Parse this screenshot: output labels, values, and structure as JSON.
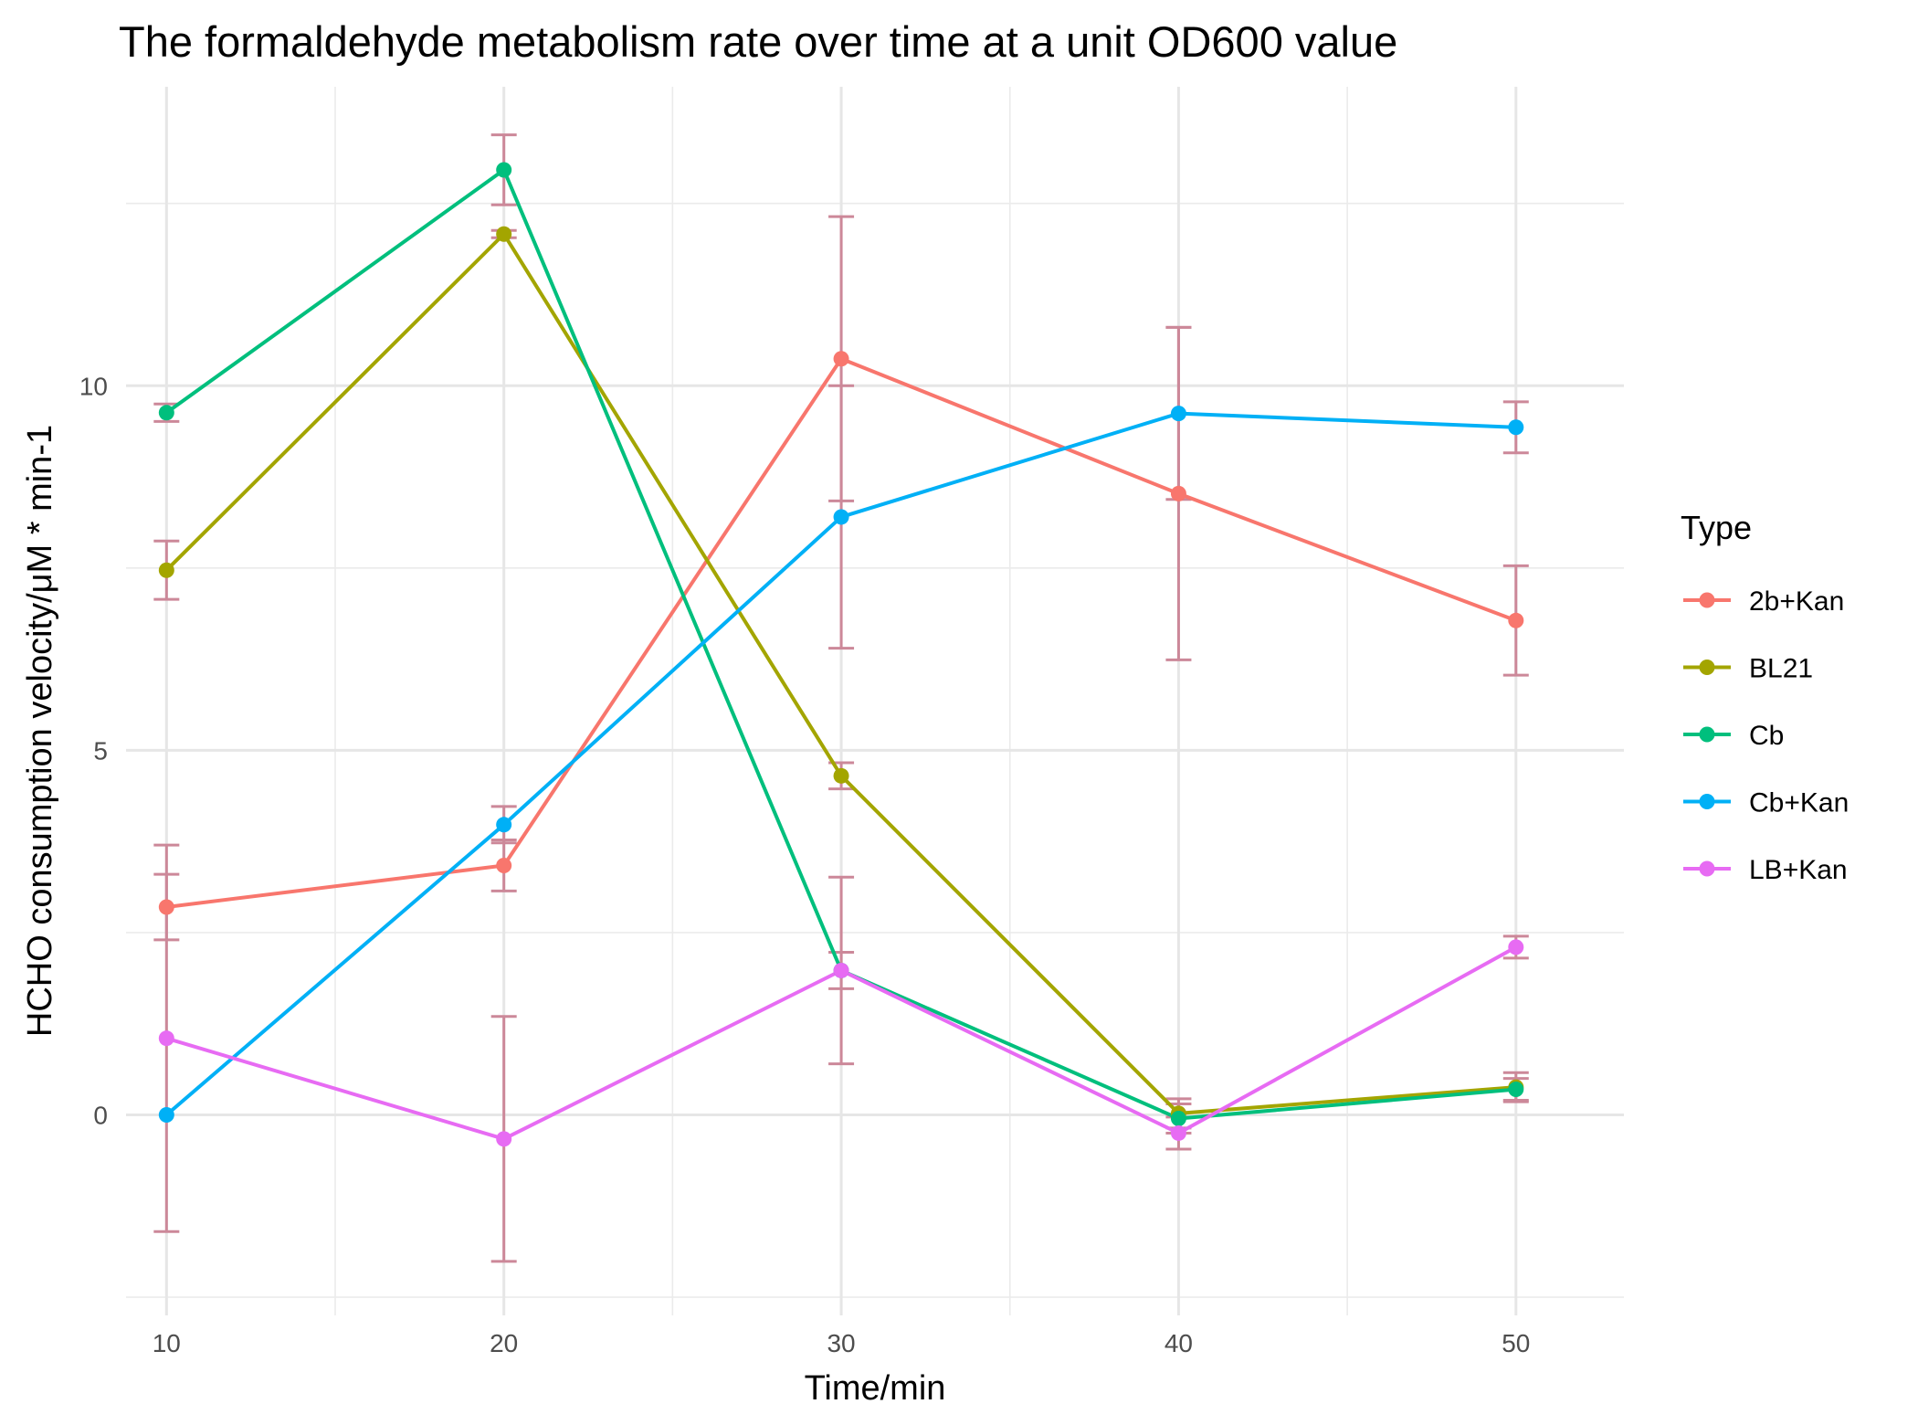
{
  "chart_data": {
    "type": "line",
    "title": "The formaldehyde metabolism rate over time at a unit OD600 value",
    "xlabel": "Time/min",
    "ylabel": "HCHO consumption velocity/μM * min-1",
    "x": [
      10,
      20,
      30,
      40,
      50
    ],
    "x_ticks": [
      "10",
      "20",
      "30",
      "40",
      "50"
    ],
    "y_ticks": [
      "0",
      "5",
      "10"
    ],
    "xlim": [
      8.8,
      53.2
    ],
    "ylim": [
      -2.75,
      14.1
    ],
    "grid": true,
    "legend": {
      "title": "Type",
      "placement": "right"
    },
    "error_bar_color": "#cc8899",
    "series": [
      {
        "name": "2b+Kan",
        "color": "#F8766D",
        "values": [
          2.85,
          3.42,
          10.37,
          8.52,
          6.78
        ],
        "err": [
          0.45,
          0.35,
          1.95,
          2.28,
          0.75
        ]
      },
      {
        "name": "BL21",
        "color": "#A3A500",
        "values": [
          7.47,
          12.08,
          4.65,
          0.02,
          0.38
        ],
        "err": [
          0.4,
          0.05,
          0.18,
          0.2,
          0.2
        ]
      },
      {
        "name": "Cb",
        "color": "#00BF7D",
        "values": [
          9.63,
          12.96,
          1.98,
          -0.05,
          0.35
        ],
        "err": [
          0.12,
          0.48,
          0.25,
          0.2,
          0.15
        ]
      },
      {
        "name": "Cb+Kan",
        "color": "#00B0F6",
        "values": [
          0.0,
          3.98,
          8.2,
          9.62,
          9.43
        ],
        "err": [
          0.0,
          0.25,
          1.8,
          1.18,
          0.35
        ]
      },
      {
        "name": "LB+Kan",
        "color": "#E76BF3",
        "values": [
          1.05,
          -0.33,
          1.98,
          -0.25,
          2.3
        ],
        "err": [
          2.65,
          1.68,
          1.28,
          0.22,
          0.15
        ]
      }
    ]
  }
}
